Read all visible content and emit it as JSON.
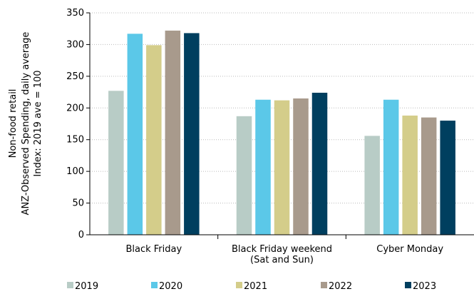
{
  "chart_data": {
    "type": "bar",
    "title": "",
    "ylabel_lines": [
      "Non-food retail",
      "ANZ-Observed Spending, daily average",
      "Index: 2019 ave = 100"
    ],
    "categories": [
      {
        "lines": [
          "Black Friday"
        ]
      },
      {
        "lines": [
          "Black Friday weekend",
          "(Sat and Sun)"
        ]
      },
      {
        "lines": [
          "Cyber Monday"
        ]
      }
    ],
    "series": [
      {
        "name": "2019",
        "color": "#b8ccc6",
        "values": [
          227,
          187,
          156
        ]
      },
      {
        "name": "2020",
        "color": "#5bc8e8",
        "values": [
          317,
          213,
          213
        ]
      },
      {
        "name": "2021",
        "color": "#d4cd8a",
        "values": [
          299,
          212,
          188
        ]
      },
      {
        "name": "2022",
        "color": "#a89a8c",
        "values": [
          322,
          215,
          185
        ]
      },
      {
        "name": "2023",
        "color": "#003f5f",
        "values": [
          318,
          224,
          180
        ]
      }
    ],
    "ylim": [
      0,
      350
    ],
    "yticks": [
      0,
      50,
      100,
      150,
      200,
      250,
      300,
      350
    ],
    "grid": true,
    "legend_position": "bottom"
  }
}
